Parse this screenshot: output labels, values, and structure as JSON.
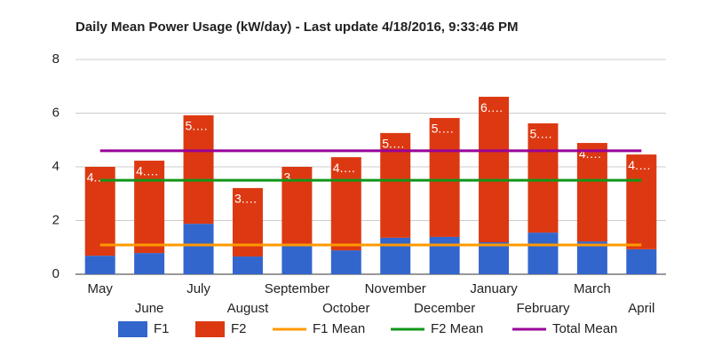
{
  "chart_data": {
    "type": "bar",
    "stacked": true,
    "title": "Daily Mean Power Usage (kW/day) - Last update 4/18/2016, 9:33:46 PM",
    "categories": [
      "May",
      "June",
      "July",
      "August",
      "September",
      "October",
      "November",
      "December",
      "January",
      "February",
      "March",
      "April"
    ],
    "series": [
      {
        "name": "F1",
        "type": "bar",
        "color": "#3366cc",
        "values": [
          0.69,
          0.79,
          1.88,
          0.66,
          1.06,
          0.89,
          1.36,
          1.39,
          1.19,
          1.55,
          1.22,
          0.93
        ]
      },
      {
        "name": "F2",
        "type": "bar",
        "color": "#dc3912",
        "values": [
          3.31,
          3.44,
          4.04,
          2.55,
          2.94,
          3.47,
          3.9,
          4.43,
          5.42,
          4.07,
          3.67,
          3.53
        ],
        "value_labels": [
          "4.…",
          "4.…",
          "5.…",
          "3.…",
          "3.…",
          "4.…",
          "5.…",
          "5.…",
          "6.…",
          "5.…",
          "4.…",
          "4.…"
        ]
      },
      {
        "name": "F1 Mean",
        "type": "line",
        "color": "#ff9900",
        "values": [
          1.09,
          1.09,
          1.09,
          1.09,
          1.09,
          1.09,
          1.09,
          1.09,
          1.09,
          1.09,
          1.09,
          1.09
        ]
      },
      {
        "name": "F2 Mean",
        "type": "line",
        "color": "#109618",
        "values": [
          3.5,
          3.5,
          3.5,
          3.5,
          3.5,
          3.5,
          3.5,
          3.5,
          3.5,
          3.5,
          3.5,
          3.5
        ]
      },
      {
        "name": "Total Mean",
        "type": "line",
        "color": "#990099",
        "values": [
          4.6,
          4.6,
          4.6,
          4.6,
          4.6,
          4.6,
          4.6,
          4.6,
          4.6,
          4.6,
          4.6,
          4.6
        ]
      }
    ],
    "ylim": [
      0,
      8
    ],
    "yticks": [
      0,
      2,
      4,
      6,
      8
    ],
    "grid": true,
    "legend": "bottom"
  }
}
